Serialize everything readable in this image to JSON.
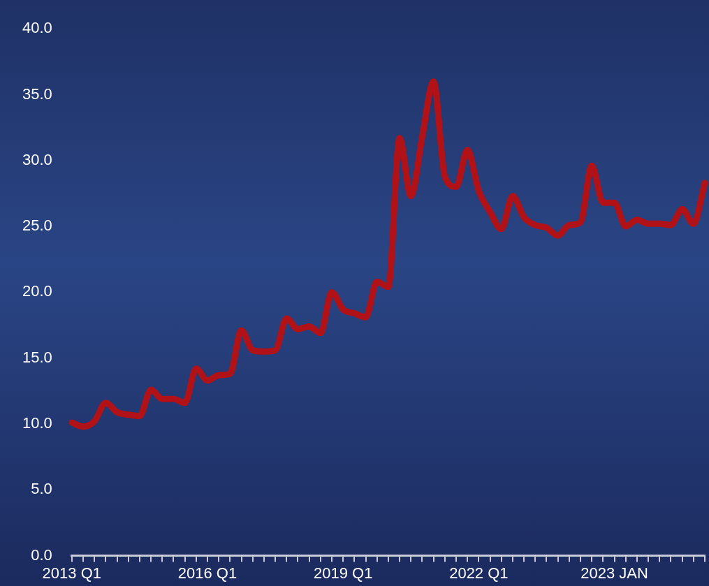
{
  "chart_data": {
    "type": "line",
    "categories": [
      "2013 Q1",
      null,
      null,
      null,
      null,
      null,
      null,
      null,
      null,
      null,
      null,
      null,
      "2016 Q1",
      null,
      null,
      null,
      null,
      null,
      null,
      null,
      null,
      null,
      null,
      null,
      "2019 Q1",
      null,
      null,
      null,
      null,
      null,
      null,
      null,
      null,
      null,
      null,
      null,
      "2022 Q1",
      null,
      null,
      null,
      null,
      null,
      null,
      null,
      null,
      null,
      null,
      null,
      "2023 JAN",
      null,
      null,
      null,
      null,
      null,
      null,
      null,
      null
    ],
    "series": [
      {
        "color": "#b01217",
        "values": [
          10.1,
          9.8,
          10.2,
          11.6,
          10.9,
          10.7,
          10.6,
          12.6,
          11.9,
          11.9,
          11.6,
          14.2,
          13.3,
          13.7,
          13.8,
          17.1,
          15.6,
          15.5,
          15.6,
          18.0,
          17.2,
          17.4,
          16.9,
          20.0,
          18.7,
          18.4,
          18.1,
          20.8,
          20.4,
          31.7,
          27.3,
          31.8,
          36.0,
          28.8,
          28.0,
          30.8,
          27.7,
          26.1,
          24.8,
          27.3,
          25.7,
          25.1,
          24.9,
          24.3,
          25.1,
          25.3,
          29.6,
          26.8,
          26.8,
          25.0,
          25.5,
          25.2,
          25.2,
          25.1,
          26.3,
          25.2,
          28.3
        ]
      }
    ],
    "ylim": [
      0,
      40
    ],
    "yticks": [
      {
        "value": 0,
        "label": "0.0"
      },
      {
        "value": 5,
        "label": "5.0"
      },
      {
        "value": 10,
        "label": "10.0"
      },
      {
        "value": 15,
        "label": "15.0"
      },
      {
        "value": 20,
        "label": "20.0"
      },
      {
        "value": 25,
        "label": "25.0"
      },
      {
        "value": 30,
        "label": "30.0"
      },
      {
        "value": 35,
        "label": "35.0"
      },
      {
        "value": 40,
        "label": "40.0"
      }
    ],
    "grid": false,
    "legend": false,
    "marker": "none",
    "line_style": "solid"
  }
}
